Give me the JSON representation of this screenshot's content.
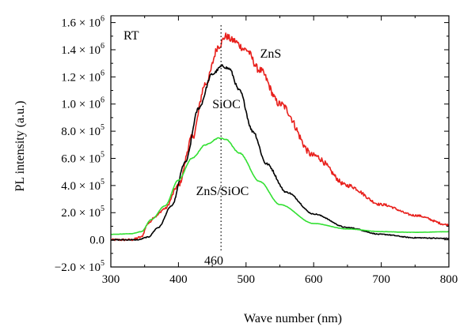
{
  "chart_data": {
    "type": "line",
    "xlabel": "Wave number (nm)",
    "ylabel": "PL intensity (a.u.)",
    "xlim": [
      300,
      800
    ],
    "ylim": [
      -200000,
      1650000
    ],
    "grid": false,
    "x_ticks": [
      300,
      400,
      500,
      600,
      700,
      800
    ],
    "y_ticks": [
      {
        "value": -200000,
        "coef": "−2.0",
        "exp": "5"
      },
      {
        "value": 0,
        "coef": "0.0",
        "exp": ""
      },
      {
        "value": 200000,
        "coef": "2.0",
        "exp": "5"
      },
      {
        "value": 400000,
        "coef": "4.0",
        "exp": "5"
      },
      {
        "value": 600000,
        "coef": "6.0",
        "exp": "5"
      },
      {
        "value": 800000,
        "coef": "8.0",
        "exp": "5"
      },
      {
        "value": 1000000,
        "coef": "1.0",
        "exp": "6"
      },
      {
        "value": 1200000,
        "coef": "1.2",
        "exp": "6"
      },
      {
        "value": 1400000,
        "coef": "1.4",
        "exp": "6"
      },
      {
        "value": 1600000,
        "coef": "1.6",
        "exp": "6"
      }
    ],
    "annotations": {
      "condition": "RT",
      "peak_line_label": "460",
      "peak_line_x": 463
    },
    "series": [
      {
        "name": "ZnS",
        "color": "#e8201c",
        "x": [
          300,
          330,
          345,
          355,
          365,
          380,
          400,
          420,
          440,
          460,
          470,
          480,
          500,
          520,
          550,
          600,
          650,
          700,
          750,
          800
        ],
        "y": [
          0,
          0,
          20000,
          120000,
          170000,
          230000,
          400000,
          750000,
          1150000,
          1430000,
          1500000,
          1470000,
          1400000,
          1250000,
          1000000,
          620000,
          400000,
          260000,
          180000,
          110000
        ]
      },
      {
        "name": "SiOC",
        "color": "#000000",
        "x": [
          300,
          340,
          355,
          370,
          390,
          410,
          430,
          450,
          465,
          475,
          490,
          510,
          530,
          560,
          600,
          650,
          700,
          750,
          800
        ],
        "y": [
          0,
          0,
          20000,
          90000,
          250000,
          570000,
          970000,
          1220000,
          1280000,
          1260000,
          1100000,
          800000,
          560000,
          350000,
          190000,
          90000,
          40000,
          15000,
          10000
        ]
      },
      {
        "name": "ZnS/SiOC",
        "color": "#33e033",
        "x": [
          300,
          330,
          345,
          360,
          380,
          400,
          420,
          440,
          460,
          470,
          490,
          520,
          550,
          600,
          650,
          700,
          750,
          800
        ],
        "y": [
          40000,
          45000,
          60000,
          150000,
          250000,
          440000,
          600000,
          700000,
          750000,
          740000,
          640000,
          430000,
          260000,
          120000,
          80000,
          60000,
          55000,
          60000
        ]
      }
    ]
  }
}
